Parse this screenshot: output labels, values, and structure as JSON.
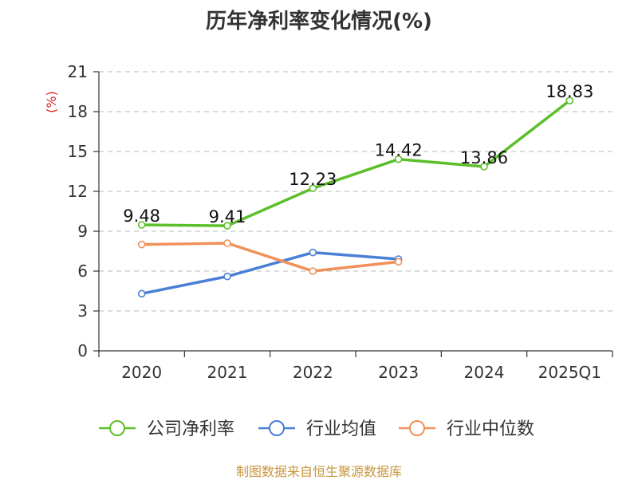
{
  "title": "历年净利率变化情况(%)",
  "source": "制图数据来自恒生聚源数据库",
  "chart_data": {
    "type": "line",
    "title": "历年净利率变化情况(%)",
    "ylabel": "(%)",
    "categories": [
      "2020",
      "2021",
      "2022",
      "2023",
      "2024",
      "2025Q1"
    ],
    "ylim": [
      0,
      21
    ],
    "yticks": [
      0,
      3,
      6,
      9,
      12,
      15,
      18,
      21
    ],
    "grid": "horizontal dashed",
    "legend_position": "bottom",
    "series": [
      {
        "name": "公司净利率",
        "color": "#5bbf2a",
        "values": [
          9.48,
          9.41,
          12.23,
          14.42,
          13.86,
          18.83
        ],
        "labels": [
          "9.48",
          "9.41",
          "12.23",
          "14.42",
          "13.86",
          "18.83"
        ]
      },
      {
        "name": "行业均值",
        "color": "#4a7fd6",
        "values": [
          4.3,
          5.6,
          7.4,
          6.9,
          null,
          null
        ]
      },
      {
        "name": "行业中位数",
        "color": "#f0915a",
        "values": [
          8.0,
          8.1,
          6.0,
          6.7,
          null,
          null
        ]
      }
    ]
  }
}
